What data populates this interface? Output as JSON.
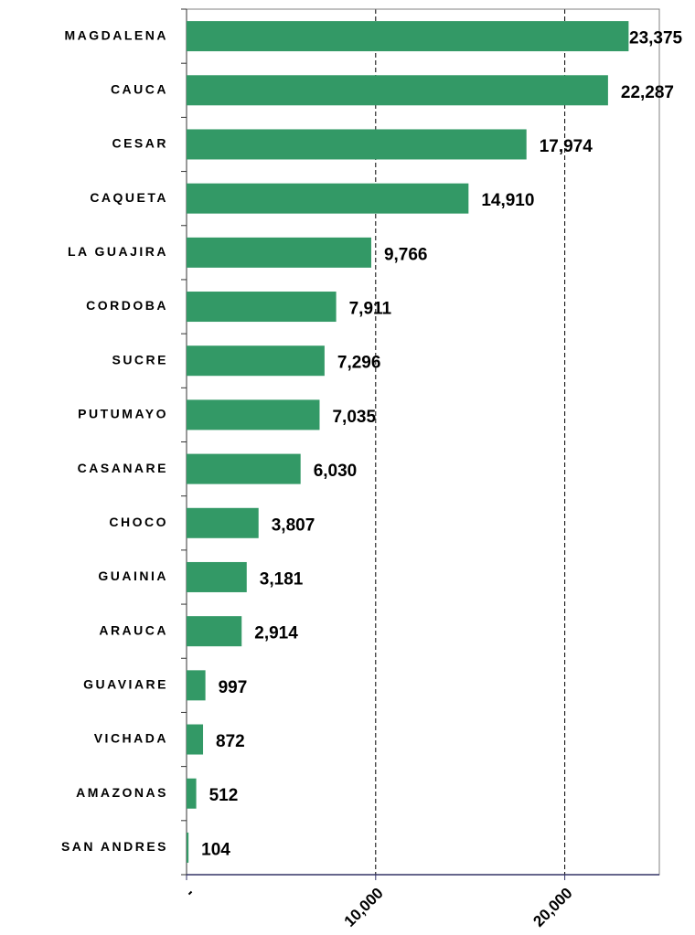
{
  "chart_data": {
    "type": "barh",
    "categories": [
      "MAGDALENA",
      "CAUCA",
      "CESAR",
      "CAQUETA",
      "LA GUAJIRA",
      "CORDOBA",
      "SUCRE",
      "PUTUMAYO",
      "CASANARE",
      "CHOCO",
      "GUAINIA",
      "ARAUCA",
      "GUAVIARE",
      "VICHADA",
      "AMAZONAS",
      "SAN ANDRES"
    ],
    "values": [
      23375,
      22287,
      17974,
      14910,
      9766,
      7911,
      7296,
      7035,
      6030,
      3807,
      3181,
      2914,
      997,
      872,
      512,
      104
    ],
    "value_labels": [
      "23,375",
      "22,287",
      "17,974",
      "14,910",
      "9,766",
      "7,911",
      "7,296",
      "7,035",
      "6,030",
      "3,807",
      "3,181",
      "2,914",
      "997",
      "872",
      "512",
      "104"
    ],
    "color": "#339966",
    "xlim": [
      0,
      25000
    ],
    "xticks": [
      {
        "value": 0,
        "label": "-"
      },
      {
        "value": 10000,
        "label": "10,000"
      },
      {
        "value": 20000,
        "label": "20,000"
      }
    ],
    "grid": true
  }
}
